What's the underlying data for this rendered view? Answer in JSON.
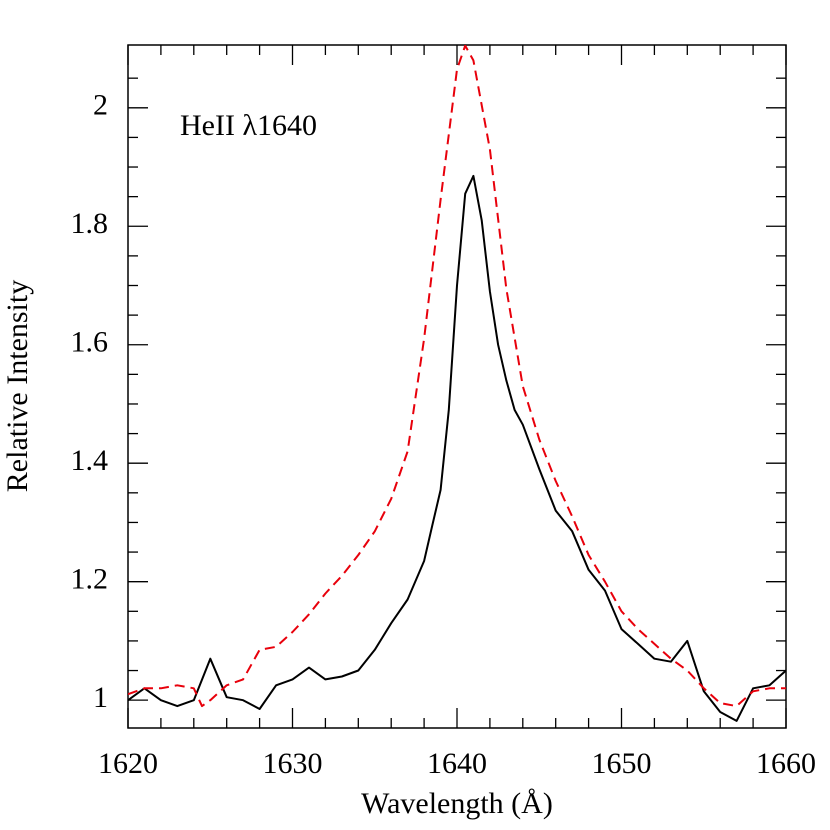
{
  "chart_data": {
    "type": "line",
    "xlabel": "Wavelength (Å)",
    "ylabel": "Relative Intensity",
    "annotation": "HeII λ1640",
    "xlim": [
      1620,
      1660
    ],
    "xticks": [
      1620,
      1630,
      1640,
      1650,
      1660
    ],
    "xticks_minor": [
      1622,
      1624,
      1626,
      1628,
      1632,
      1634,
      1636,
      1638,
      1642,
      1644,
      1646,
      1648,
      1652,
      1654,
      1656,
      1658
    ],
    "ylim": [
      0.953,
      2.106
    ],
    "yticks": [
      1,
      1.2,
      1.4,
      1.6,
      1.8,
      2
    ],
    "yticks_minor": [
      1.05,
      1.1,
      1.15,
      1.25,
      1.3,
      1.35,
      1.45,
      1.5,
      1.55,
      1.65,
      1.7,
      1.75,
      1.85,
      1.9,
      1.95,
      2.05
    ],
    "series": [
      {
        "color": "#000000",
        "dash": false,
        "x": [
          1620,
          1621,
          1622,
          1623,
          1624,
          1625,
          1626,
          1627,
          1628,
          1629,
          1630,
          1631,
          1632,
          1633,
          1634,
          1635,
          1636,
          1637,
          1638,
          1638.5,
          1639,
          1639.5,
          1640,
          1640.5,
          1641,
          1641.5,
          1642,
          1642.5,
          1643,
          1643.5,
          1644,
          1645,
          1646,
          1647,
          1648,
          1649,
          1650,
          1651,
          1652,
          1653,
          1654,
          1655,
          1656,
          1657,
          1658,
          1659,
          1660
        ],
        "values": [
          1.0,
          1.02,
          1.0,
          0.99,
          1.0,
          1.07,
          1.005,
          1.0,
          0.985,
          1.025,
          1.035,
          1.055,
          1.035,
          1.04,
          1.05,
          1.085,
          1.13,
          1.17,
          1.235,
          1.295,
          1.355,
          1.49,
          1.7,
          1.855,
          1.885,
          1.81,
          1.69,
          1.6,
          1.54,
          1.49,
          1.465,
          1.39,
          1.32,
          1.285,
          1.22,
          1.185,
          1.12,
          1.095,
          1.07,
          1.065,
          1.1,
          1.015,
          0.98,
          0.965,
          1.02,
          1.025,
          1.05
        ]
      },
      {
        "color": "#e8000b",
        "dash": true,
        "x": [
          1620,
          1621,
          1622,
          1623,
          1624,
          1624.5,
          1625,
          1626,
          1627,
          1628,
          1629,
          1630,
          1631,
          1632,
          1633,
          1634,
          1635,
          1636,
          1637,
          1638,
          1639,
          1640,
          1640.5,
          1641,
          1642,
          1643,
          1644,
          1645,
          1646,
          1647,
          1648,
          1649,
          1650,
          1651,
          1652,
          1653,
          1654,
          1655,
          1656,
          1657,
          1658,
          1659,
          1660
        ],
        "values": [
          1.01,
          1.02,
          1.02,
          1.025,
          1.02,
          0.99,
          1.0,
          1.025,
          1.035,
          1.085,
          1.09,
          1.115,
          1.145,
          1.18,
          1.21,
          1.245,
          1.285,
          1.34,
          1.42,
          1.61,
          1.845,
          2.065,
          2.105,
          2.08,
          1.93,
          1.695,
          1.53,
          1.44,
          1.37,
          1.31,
          1.245,
          1.2,
          1.15,
          1.12,
          1.095,
          1.07,
          1.05,
          1.02,
          0.995,
          0.99,
          1.015,
          1.02,
          1.02
        ]
      }
    ]
  }
}
